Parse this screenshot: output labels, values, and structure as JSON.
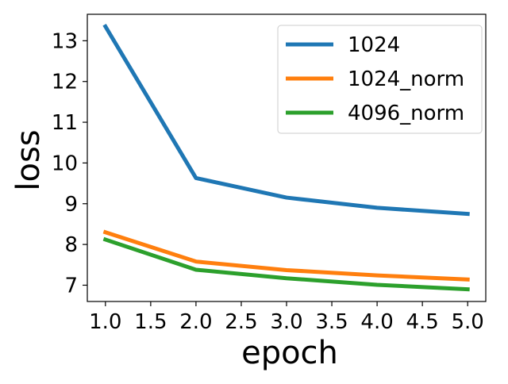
{
  "chart_data": {
    "type": "line",
    "title": "",
    "xlabel": "epoch",
    "ylabel": "loss",
    "x": [
      1.0,
      2.0,
      3.0,
      4.0,
      5.0
    ],
    "xlim": [
      0.8,
      5.2
    ],
    "ylim": [
      6.6,
      13.65
    ],
    "xticks": [
      1.0,
      1.5,
      2.0,
      2.5,
      3.0,
      3.5,
      4.0,
      4.5,
      5.0
    ],
    "xtick_labels": [
      "1.0",
      "1.5",
      "2.0",
      "2.5",
      "3.0",
      "3.5",
      "4.0",
      "4.5",
      "5.0"
    ],
    "yticks": [
      7,
      8,
      9,
      10,
      11,
      12,
      13
    ],
    "ytick_labels": [
      "7",
      "8",
      "9",
      "10",
      "11",
      "12",
      "13"
    ],
    "grid": false,
    "legend_position": "top-right",
    "series": [
      {
        "name": "1024",
        "color": "#1f77b4",
        "values": [
          13.35,
          9.63,
          9.15,
          8.9,
          8.75
        ]
      },
      {
        "name": "1024_norm",
        "color": "#ff7f0e",
        "values": [
          8.3,
          7.58,
          7.37,
          7.24,
          7.14
        ]
      },
      {
        "name": "4096_norm",
        "color": "#2ca02c",
        "values": [
          8.12,
          7.38,
          7.17,
          7.01,
          6.9
        ]
      }
    ]
  }
}
